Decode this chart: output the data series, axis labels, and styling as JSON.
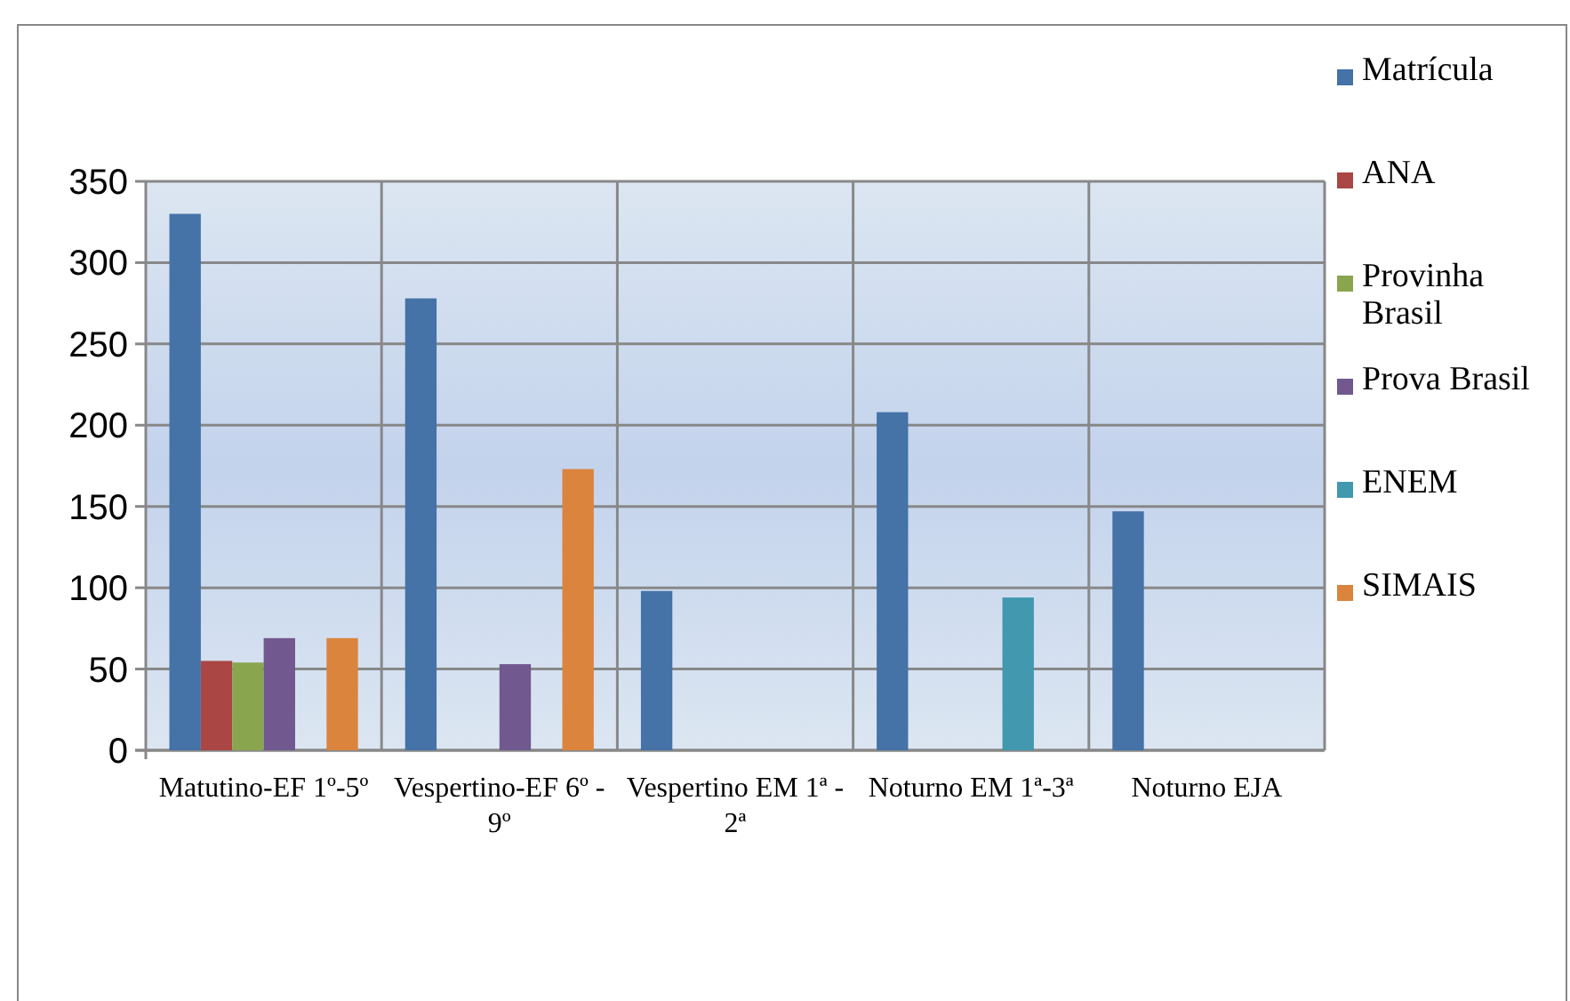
{
  "chart_data": {
    "type": "bar",
    "categories": [
      "Matutino-EF 1º-5º",
      "Vespertino-EF 6º - 9º",
      "Vespertino EM 1ª - 2ª",
      "Noturno EM 1ª-3ª",
      "Noturno EJA"
    ],
    "series": [
      {
        "name": "Matrícula",
        "color": "#4572a7",
        "values": [
          330,
          278,
          98,
          208,
          147
        ]
      },
      {
        "name": "ANA",
        "color": "#aa4643",
        "values": [
          55,
          null,
          null,
          null,
          null
        ]
      },
      {
        "name": "Provinha Brasil",
        "color": "#89a54e",
        "values": [
          54,
          null,
          null,
          null,
          null
        ]
      },
      {
        "name": "Prova Brasil",
        "color": "#71588f",
        "values": [
          69,
          53,
          null,
          null,
          null
        ]
      },
      {
        "name": "ENEM",
        "color": "#4198af",
        "values": [
          null,
          null,
          null,
          94,
          null
        ]
      },
      {
        "name": "SIMAIS",
        "color": "#db843d",
        "values": [
          69,
          173,
          null,
          null,
          null
        ]
      }
    ],
    "ylim": [
      0,
      350
    ],
    "yticks": [
      0,
      50,
      100,
      150,
      200,
      250,
      300,
      350
    ],
    "grid": true,
    "legend": "right"
  }
}
